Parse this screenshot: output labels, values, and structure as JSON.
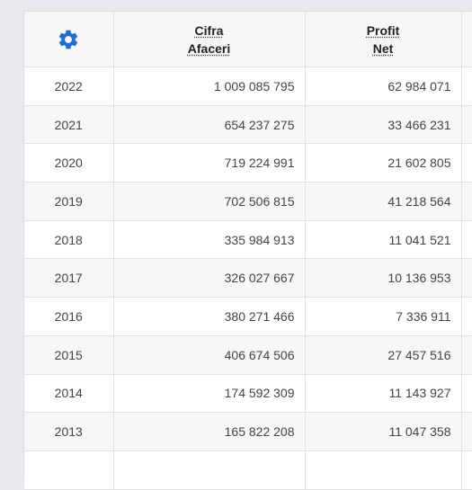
{
  "header": {
    "settings_icon": "gear-icon",
    "revenue_line1": "Cifra",
    "revenue_line2": "Afaceri",
    "profit_line1": "Profit",
    "profit_line2": "Net"
  },
  "colors": {
    "accent": "#1f6fd1",
    "header_bg": "#f7f7f7",
    "stripe_bg": "#f7f7f7",
    "page_bg": "#e9eaed"
  },
  "rows": [
    {
      "year": "2022",
      "revenue": "1 009 085 795",
      "profit": "62 984 071"
    },
    {
      "year": "2021",
      "revenue": "654 237 275",
      "profit": "33 466 231"
    },
    {
      "year": "2020",
      "revenue": "719 224 991",
      "profit": "21 602 805"
    },
    {
      "year": "2019",
      "revenue": "702 506 815",
      "profit": "41 218 564"
    },
    {
      "year": "2018",
      "revenue": "335 984 913",
      "profit": "11 041 521"
    },
    {
      "year": "2017",
      "revenue": "326 027 667",
      "profit": "10 136 953"
    },
    {
      "year": "2016",
      "revenue": "380 271 466",
      "profit": "7 336 911"
    },
    {
      "year": "2015",
      "revenue": "406 674 506",
      "profit": "27 457 516"
    },
    {
      "year": "2014",
      "revenue": "174 592 309",
      "profit": "11 143 927"
    },
    {
      "year": "2013",
      "revenue": "165 822 208",
      "profit": "11 047 358"
    }
  ]
}
